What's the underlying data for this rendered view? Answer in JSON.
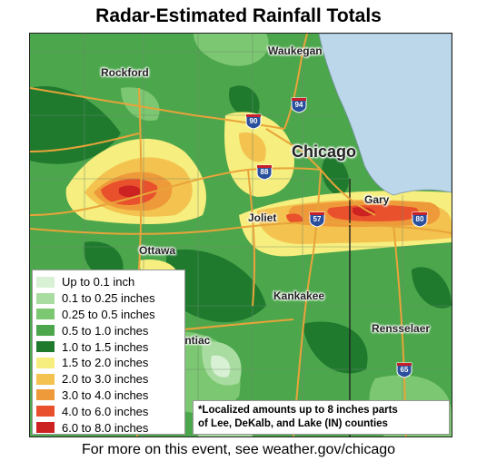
{
  "title": "Radar-Estimated Rainfall Totals",
  "footer": "For more on this event, see weather.gov/chicago",
  "note": {
    "line1": "*Localized amounts up to 8 inches parts",
    "line2": "of Lee, DeKalb, and Lake (IN) counties"
  },
  "legend": [
    {
      "label": "Up to 0.1 inch",
      "color": "#d8f0d4"
    },
    {
      "label": "0.1 to 0.25 inches",
      "color": "#a9dca1"
    },
    {
      "label": "0.25 to 0.5 inches",
      "color": "#7cc771"
    },
    {
      "label": "0.5 to 1.0 inches",
      "color": "#4ca64c"
    },
    {
      "label": "1.0 to 1.5 inches",
      "color": "#1f7a2e"
    },
    {
      "label": "1.5 to 2.0 inches",
      "color": "#f6ee7e"
    },
    {
      "label": "2.0 to 3.0 inches",
      "color": "#f3c24f"
    },
    {
      "label": "3.0 to 4.0 inches",
      "color": "#ef9a3a"
    },
    {
      "label": "4.0 to 6.0 inches",
      "color": "#e9502c"
    },
    {
      "label": "6.0 to 8.0 inches",
      "color": "#cc2222"
    }
  ],
  "cities": {
    "waukegan": "Waukegan",
    "rockford": "Rockford",
    "chicago": "Chicago",
    "gary": "Gary",
    "joliet": "Joliet",
    "ottawa": "Ottawa",
    "kankakee": "Kankakee",
    "rensselaer": "Rensselaer",
    "pontiac": "Pontiac"
  },
  "interstates": {
    "i94": "94",
    "i90": "90",
    "i88": "88",
    "i57": "57",
    "i80": "80",
    "i65": "65"
  },
  "colors": {
    "lake": "#bcd7ea",
    "highway": "#e8a43a",
    "county_line": "#6f8a6f",
    "state_line": "#222222",
    "shield_blue": "#2a4f9c",
    "shield_red": "#c8202a"
  }
}
